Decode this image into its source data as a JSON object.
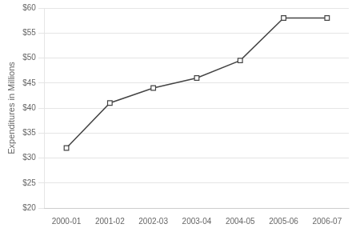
{
  "chart_data": {
    "type": "line",
    "categories": [
      "2000-01",
      "2001-02",
      "2002-03",
      "2003-04",
      "2004-05",
      "2005-06",
      "2006-07"
    ],
    "values": [
      32,
      41,
      44,
      46,
      49.5,
      58,
      58
    ],
    "ylabel": "Expenditures in Millions",
    "ylim": [
      20,
      60
    ],
    "yticks": [
      {
        "value": 20,
        "label": "$20"
      },
      {
        "value": 25,
        "label": "$25"
      },
      {
        "value": 30,
        "label": "$30"
      },
      {
        "value": 35,
        "label": "$35"
      },
      {
        "value": 40,
        "label": "$40"
      },
      {
        "value": 45,
        "label": "$45"
      },
      {
        "value": 50,
        "label": "$50"
      },
      {
        "value": 55,
        "label": "$55"
      },
      {
        "value": 60,
        "label": "$60"
      }
    ],
    "color": "#444444",
    "marker": "square",
    "line_style": "solid",
    "grid": "y"
  }
}
